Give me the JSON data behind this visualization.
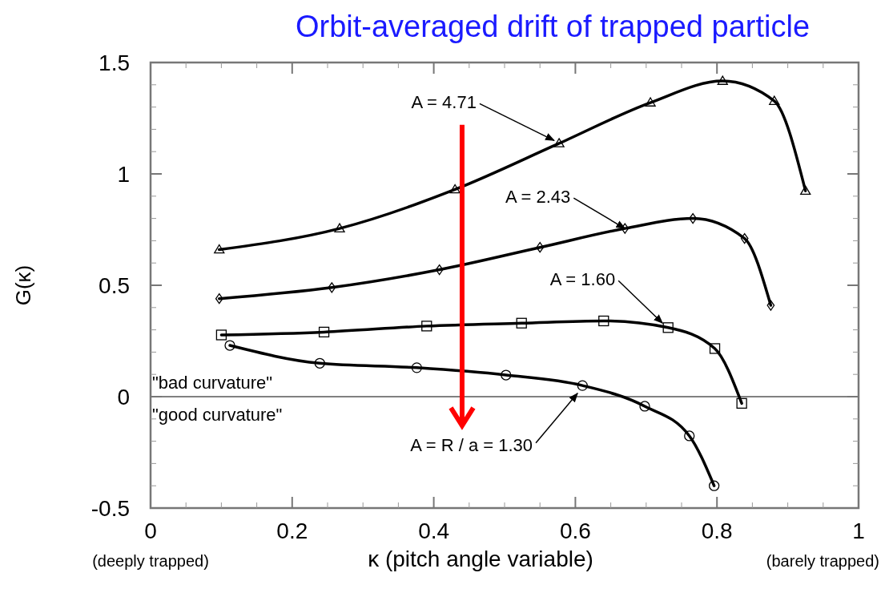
{
  "chart_data": {
    "type": "line",
    "title": "Orbit-averaged drift of trapped particle",
    "xlabel": "κ (pitch angle variable)",
    "ylabel": "G(κ)",
    "xlim": [
      0,
      1
    ],
    "xticks": [
      0,
      0.2,
      0.4,
      0.6,
      0.8,
      1
    ],
    "ylim": [
      -0.5,
      1.5
    ],
    "yticks": [
      -0.5,
      0,
      0.5,
      1,
      1.5
    ],
    "grid": false,
    "line_style": "solid",
    "series": [
      {
        "marker": "triangle",
        "color": "#000000",
        "x": [
          0.097,
          0.267,
          0.43,
          0.577,
          0.706,
          0.808,
          0.881,
          0.925
        ],
        "values": [
          0.66,
          0.755,
          0.93,
          1.137,
          1.32,
          1.417,
          1.327,
          0.924
        ]
      },
      {
        "marker": "diamond",
        "color": "#000000",
        "x": [
          0.097,
          0.256,
          0.408,
          0.55,
          0.67,
          0.766,
          0.839,
          0.876
        ],
        "values": [
          0.44,
          0.49,
          0.57,
          0.67,
          0.755,
          0.8,
          0.71,
          0.41
        ]
      },
      {
        "marker": "square",
        "color": "#000000",
        "x": [
          0.1,
          0.245,
          0.39,
          0.524,
          0.64,
          0.731,
          0.797,
          0.835
        ],
        "values": [
          0.277,
          0.29,
          0.317,
          0.33,
          0.34,
          0.31,
          0.216,
          -0.03
        ]
      },
      {
        "marker": "circle",
        "color": "#000000",
        "x": [
          0.112,
          0.239,
          0.376,
          0.502,
          0.61,
          0.698,
          0.761,
          0.796
        ],
        "values": [
          0.23,
          0.15,
          0.13,
          0.097,
          0.05,
          -0.043,
          -0.176,
          -0.4
        ]
      }
    ],
    "ref_lines": [
      {
        "axis": "y",
        "value": 0,
        "color": "#808080"
      }
    ],
    "annotations": [
      {
        "text": "A = 4.71",
        "x": 0.57,
        "y": 1.15
      },
      {
        "text": "A = 2.43",
        "x": 0.67,
        "y": 0.755
      },
      {
        "text": "A = 1.60",
        "x": 0.723,
        "y": 0.33
      },
      {
        "text": "A = R / a = 1.30",
        "x": 0.603,
        "y": 0.015
      },
      "\"bad curvature\"",
      "\"good curvature\"",
      "(deeply trapped)",
      "(barely trapped)"
    ]
  }
}
